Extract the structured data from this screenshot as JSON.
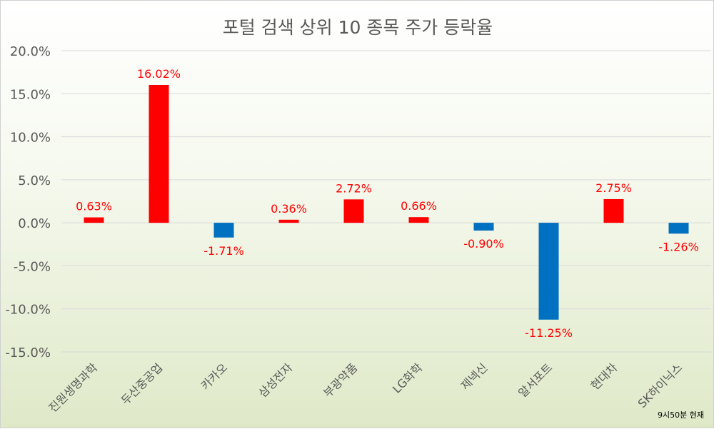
{
  "chart_data": {
    "type": "bar",
    "title": "포털 검색 상위 10 종목 주가 등락율",
    "categories": [
      "진원생명과학",
      "두산중공업",
      "카카오",
      "삼성전자",
      "부광약품",
      "LG화학",
      "제넥신",
      "알서포트",
      "현대차",
      "SK하이닉스"
    ],
    "values": [
      0.63,
      16.02,
      -1.71,
      0.36,
      2.72,
      0.66,
      -0.9,
      -11.25,
      2.75,
      -1.26
    ],
    "data_labels": [
      "0.63%",
      "16.02%",
      "-1.71%",
      "0.36%",
      "2.72%",
      "0.66%",
      "-0.90%",
      "-11.25%",
      "2.75%",
      "-1.26%"
    ],
    "yticks": [
      20,
      15,
      10,
      5,
      0,
      -5,
      -10,
      -15
    ],
    "ytick_labels": [
      "20.0%",
      "15.0%",
      "10.0%",
      "5.0%",
      "0.0%",
      "-5.0%",
      "-10.0%",
      "-15.0%"
    ],
    "ylim": [
      -15,
      20
    ],
    "grid": true,
    "colors": {
      "positive": "#ff0000",
      "negative": "#0070c0",
      "label": "#ff0000",
      "grid": "#d9d9d9",
      "axis_text": "#595959"
    },
    "annotation": "9시50분 현재"
  }
}
